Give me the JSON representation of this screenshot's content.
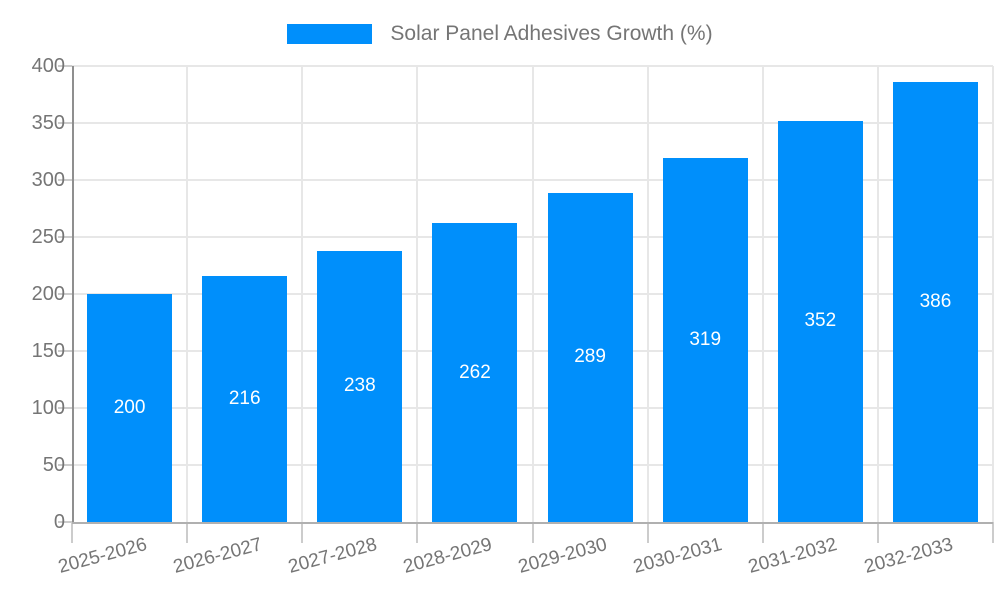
{
  "chart_data": {
    "type": "bar",
    "title": "Solar Panel Adhesives Growth (%)",
    "legend_position": "top",
    "categories": [
      "2025-2026",
      "2026-2027",
      "2027-2028",
      "2028-2029",
      "2029-2030",
      "2030-2031",
      "2031-2032",
      "2032-2033"
    ],
    "series": [
      {
        "name": "Solar Panel Adhesives Growth (%)",
        "values": [
          200,
          216,
          238,
          262,
          289,
          319,
          352,
          386
        ]
      }
    ],
    "value_labels": [
      "200",
      "216",
      "238",
      "262",
      "289",
      "319",
      "352",
      "386"
    ],
    "xlabel": "",
    "ylabel": "",
    "ylim": [
      0,
      400
    ],
    "yticks": [
      0,
      50,
      100,
      150,
      200,
      250,
      300,
      350,
      400
    ],
    "grid": true,
    "colors": {
      "bar": "#008FFB",
      "value_label": "#ffffff",
      "axis_label": "#757575",
      "legend_label": "#757575",
      "h_gridline": "#e7e7e7",
      "v_gridline": "#e7e7e7",
      "y_axis_line": "#8f8f8f",
      "x_axis_line": "#b0b0b0",
      "tick": "#cccccc",
      "background": "#ffffff"
    }
  }
}
